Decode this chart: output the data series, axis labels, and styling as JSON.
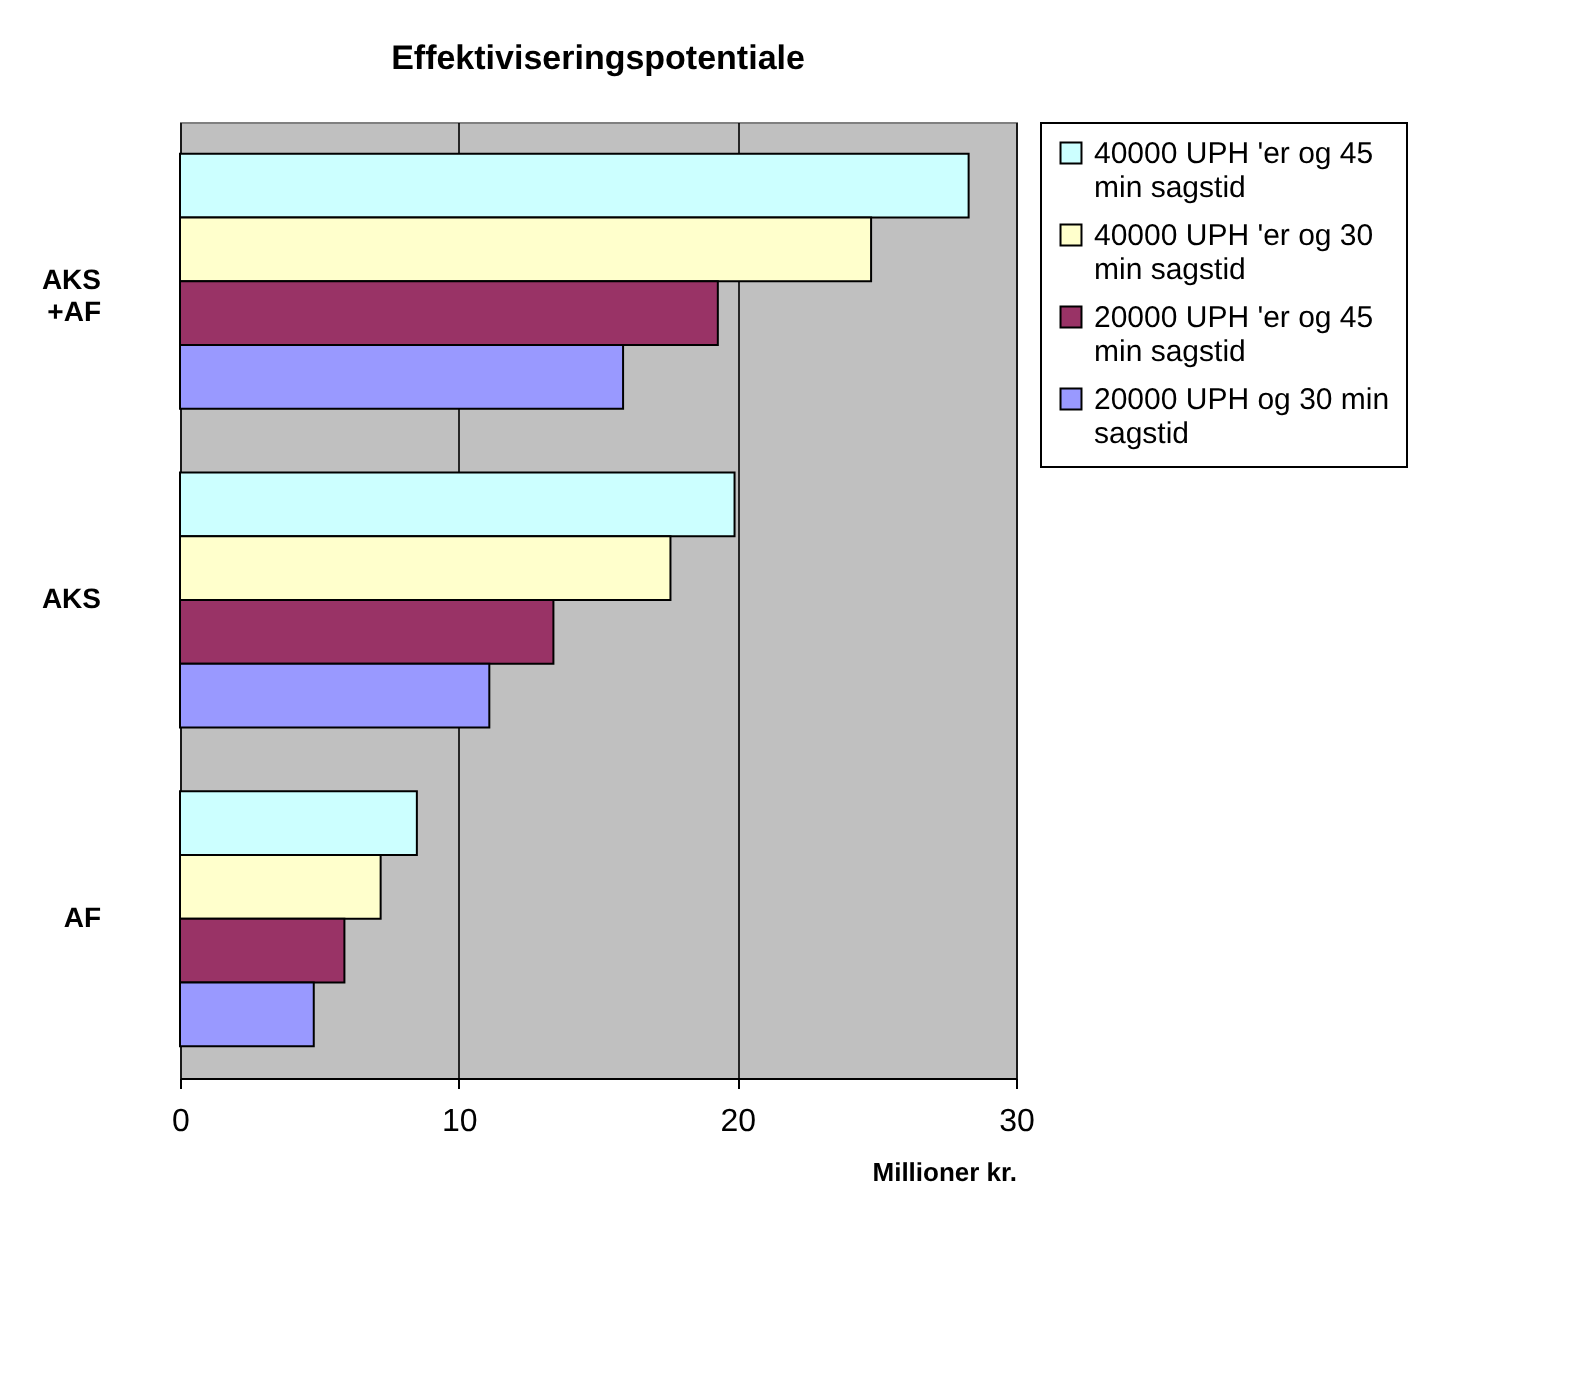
{
  "chart_data": {
    "type": "bar",
    "orientation": "horizontal",
    "title": "Effektiviseringspotentiale",
    "xlabel": "Millioner kr.",
    "categories": [
      "AKS +AF",
      "AKS",
      "AF"
    ],
    "series": [
      {
        "name": "40000 UPH 'er og 45 min sagstid",
        "color": "#ccffff",
        "values": [
          28.3,
          19.9,
          8.5
        ]
      },
      {
        "name": "40000 UPH 'er og 30 min sagstid",
        "color": "#ffffcc",
        "values": [
          24.8,
          17.6,
          7.2
        ]
      },
      {
        "name": "20000 UPH 'er og 45 min sagstid",
        "color": "#993366",
        "values": [
          19.3,
          13.4,
          5.9
        ]
      },
      {
        "name": "20000 UPH og 30 min sagstid",
        "color": "#9999ff",
        "values": [
          15.9,
          11.1,
          4.8
        ]
      }
    ],
    "xlim": [
      0,
      30
    ],
    "xticks": [
      0,
      10,
      20,
      30
    ],
    "grid": "x",
    "legend": "right"
  }
}
